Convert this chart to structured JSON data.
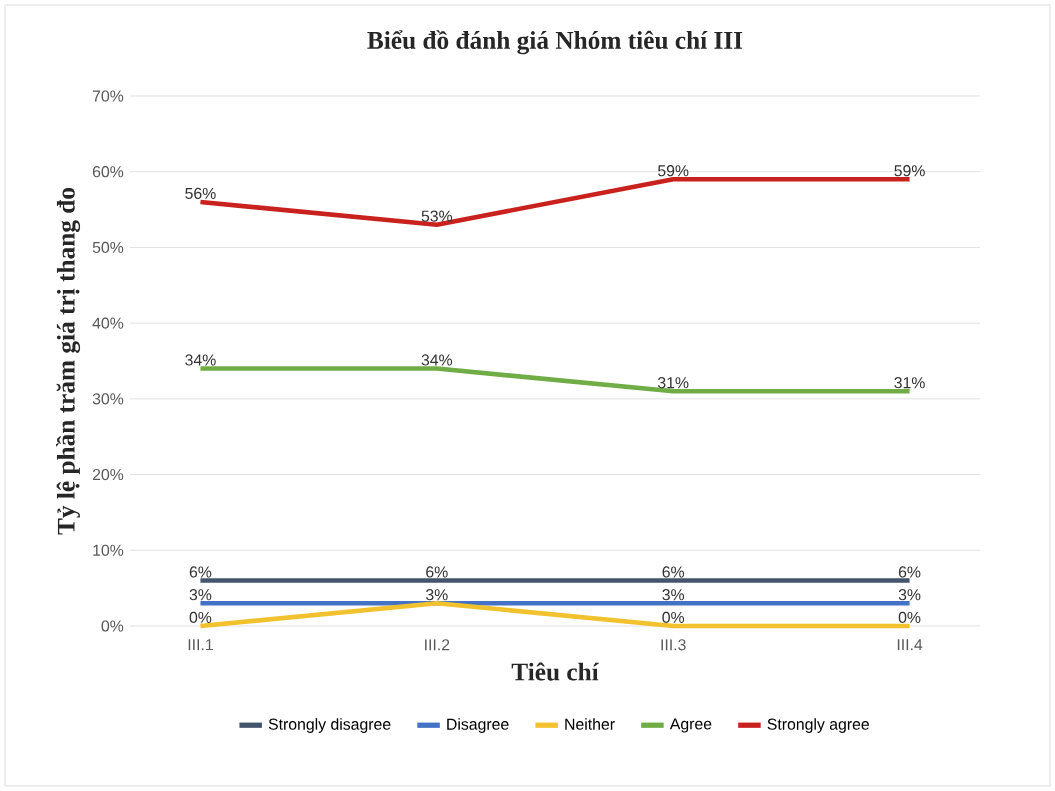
{
  "chart_data": {
    "type": "line",
    "title": "Biểu đồ đánh giá Nhóm tiêu chí III",
    "xlabel": "Tiêu chí",
    "ylabel": "Tỷ lệ phần trăm giá trị thang đo",
    "categories": [
      "III.1",
      "III.2",
      "III.3",
      "III.4"
    ],
    "series": [
      {
        "name": "Strongly disagree",
        "color": "#44546a",
        "values": [
          6,
          6,
          6,
          6
        ],
        "value_labels": [
          "6%",
          "6%",
          "6%",
          "6%"
        ]
      },
      {
        "name": "Disagree",
        "color": "#4472c4",
        "values": [
          3,
          3,
          3,
          3
        ],
        "value_labels": [
          "3%",
          "3%",
          "3%",
          "3%"
        ]
      },
      {
        "name": "Neither",
        "color": "#f2c12e",
        "values": [
          0,
          3,
          0,
          0
        ],
        "value_labels": [
          "0%",
          null,
          "0%",
          "0%"
        ]
      },
      {
        "name": "Agree",
        "color": "#70ad47",
        "values": [
          34,
          34,
          31,
          31
        ],
        "value_labels": [
          "34%",
          "34%",
          "31%",
          "31%"
        ]
      },
      {
        "name": "Strongly agree",
        "color": "#c9211e",
        "values": [
          56,
          53,
          59,
          59
        ],
        "value_labels": [
          "56%",
          "53%",
          "59%",
          "59%"
        ]
      }
    ],
    "ylim": [
      0,
      70
    ],
    "yticks": [
      {
        "value": 0,
        "label": "0%"
      },
      {
        "value": 10,
        "label": "10%"
      },
      {
        "value": 20,
        "label": "20%"
      },
      {
        "value": 30,
        "label": "30%"
      },
      {
        "value": 40,
        "label": "40%"
      },
      {
        "value": 50,
        "label": "50%"
      },
      {
        "value": 60,
        "label": "60%"
      },
      {
        "value": 70,
        "label": "70%"
      }
    ],
    "grid": "y",
    "legend": "bottom",
    "marker": "none",
    "line_style": "solid"
  }
}
